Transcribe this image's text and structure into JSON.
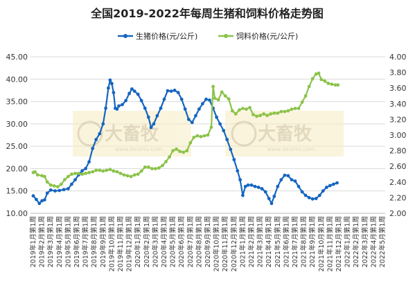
{
  "chart_data": {
    "type": "line",
    "title": "全国2019-2022年每周生猪和饲料价格走势图",
    "watermark_text": "www.dxumu.com",
    "categories": [
      "2019年1月第1周",
      "2019年2月第1周",
      "2019年3月第1周",
      "2019年4月第1周",
      "2019年5月第1周",
      "2019年6月第1周",
      "2019年7月第1周",
      "2019年8月第1周",
      "2019年9月第1周",
      "2019年10月第1周",
      "2019年11月第1周",
      "2019年12月第1周",
      "2020年1月第1周",
      "2020年2月第1周",
      "2020年3月第1周",
      "2020年4月第1周",
      "2020年5月第1周",
      "2020年6月第1周",
      "2020年7月第1周",
      "2020年8月第1周",
      "2020年9月第1周",
      "2020年10月第1周",
      "2020年11月第1周",
      "2020年12月第1周",
      "2021年1月第1周",
      "2021年2月第1周",
      "2021年3月第1周",
      "2021年4月第1周",
      "2021年5月第1周",
      "2021年6月第1周",
      "2021年7月第1周",
      "2021年8月第1周",
      "2021年9月第1周",
      "2021年10月第1周",
      "2021年11月第1周",
      "2021年12月第1周",
      "2022年1月第1周",
      "2022年2月第1周",
      "2022年3月第1周",
      "2022年4月第1周",
      "2022年5月第1周"
    ],
    "x_tick_labels": [
      "2019年1月第1周",
      "2019年2月第1周",
      "2019年3月第1周",
      "2019年4月第1周",
      "2019年5月第1周",
      "2019年6月第1周",
      "2019年7月第1周",
      "2019年8月第1周",
      "2019年9月第1周",
      "2019年10月第1周",
      "2019年11月第1周",
      "2019年12月第1周",
      "2020年1月第1周",
      "2020年2月第1周",
      "2020年3月第1周",
      "2020年4月第1周",
      "2020年5月第1周",
      "2020年6月第1周",
      "2020年7月第1周",
      "2020年8月第1周",
      "2020年9月第1周",
      "2020年10月第1周",
      "2020年11月第1周",
      "2020年12月第1周",
      "2021年1月第1周",
      "2021年2月第1周",
      "2021年3月第1周",
      "2021年4月第1周",
      "2021年5月第1周",
      "2021年6月第1周",
      "2021年7月第1周",
      "2021年8月第1周",
      "2021年9月第1周",
      "2021年10月第1周",
      "2021年11月第1周",
      "2021年12月第1周",
      "2022年1月第1周",
      "2022年2月第1周",
      "2022年3月第1周",
      "2022年4月第1周",
      "2022年5月第1周"
    ],
    "y_left": {
      "min": 10,
      "max": 45,
      "ticks": [
        "10.00",
        "15.00",
        "20.00",
        "25.00",
        "30.00",
        "35.00",
        "40.00",
        "45.00"
      ]
    },
    "y_right": {
      "min": 2.0,
      "max": 4.0,
      "ticks": [
        "2.00",
        "2.20",
        "2.40",
        "2.60",
        "2.80",
        "3.00",
        "3.20",
        "3.40",
        "3.60",
        "3.80",
        "4.00"
      ]
    },
    "grid": true,
    "legend_position": "top",
    "series": [
      {
        "name": "生猪价格(元/公斤)",
        "axis": "left",
        "color": "#1565c0",
        "points": [
          [
            0,
            13.9
          ],
          [
            0.35,
            13.1
          ],
          [
            0.7,
            12.2
          ],
          [
            1,
            12.8
          ],
          [
            1.3,
            13.0
          ],
          [
            1.6,
            14.5
          ],
          [
            2,
            15.2
          ],
          [
            2.5,
            15.0
          ],
          [
            3,
            15.1
          ],
          [
            3.5,
            15.3
          ],
          [
            4,
            15.5
          ],
          [
            4.4,
            16.5
          ],
          [
            4.8,
            17.5
          ],
          [
            5.2,
            18.6
          ],
          [
            5.6,
            19.5
          ],
          [
            6,
            20.0
          ],
          [
            6.4,
            21.5
          ],
          [
            6.8,
            24.5
          ],
          [
            7.2,
            26.5
          ],
          [
            7.6,
            27.8
          ],
          [
            8,
            30.0
          ],
          [
            8.3,
            33.5
          ],
          [
            8.6,
            38.0
          ],
          [
            8.8,
            39.8
          ],
          [
            9.0,
            39.0
          ],
          [
            9.2,
            37.0
          ],
          [
            9.4,
            33.5
          ],
          [
            9.6,
            33.3
          ],
          [
            9.8,
            34.0
          ],
          [
            10.2,
            34.3
          ],
          [
            10.6,
            35.2
          ],
          [
            11,
            36.8
          ],
          [
            11.3,
            37.8
          ],
          [
            11.6,
            37.3
          ],
          [
            12,
            36.6
          ],
          [
            12.4,
            35.2
          ],
          [
            12.8,
            33.5
          ],
          [
            13.2,
            31.5
          ],
          [
            13.5,
            29.2
          ],
          [
            13.8,
            30.0
          ],
          [
            14.2,
            31.8
          ],
          [
            14.6,
            33.5
          ],
          [
            15,
            35.5
          ],
          [
            15.4,
            37.4
          ],
          [
            15.8,
            37.3
          ],
          [
            16.2,
            37.5
          ],
          [
            16.6,
            37.0
          ],
          [
            17,
            35.5
          ],
          [
            17.4,
            33.3
          ],
          [
            17.8,
            31.0
          ],
          [
            18.2,
            30.3
          ],
          [
            18.6,
            31.8
          ],
          [
            19,
            33.3
          ],
          [
            19.4,
            34.5
          ],
          [
            19.8,
            35.5
          ],
          [
            20.2,
            35.3
          ],
          [
            20.6,
            33.5
          ],
          [
            21,
            31.5
          ],
          [
            21.4,
            30.0
          ],
          [
            21.8,
            28.5
          ],
          [
            22.2,
            26.5
          ],
          [
            22.6,
            24.3
          ],
          [
            23,
            22.0
          ],
          [
            23.4,
            19.5
          ],
          [
            23.7,
            17.5
          ],
          [
            24,
            14.0
          ],
          [
            24.3,
            16.0
          ],
          [
            24.6,
            16.3
          ],
          [
            25,
            16.3
          ],
          [
            25.4,
            16.0
          ],
          [
            25.8,
            15.8
          ],
          [
            26.2,
            15.5
          ],
          [
            26.6,
            14.8
          ],
          [
            27,
            13.3
          ],
          [
            27.3,
            12.2
          ],
          [
            27.6,
            13.8
          ],
          [
            28,
            16.0
          ],
          [
            28.4,
            17.5
          ],
          [
            28.8,
            18.5
          ],
          [
            29.2,
            18.4
          ],
          [
            29.6,
            17.5
          ],
          [
            30,
            17.2
          ],
          [
            30.4,
            16.0
          ],
          [
            30.8,
            14.8
          ],
          [
            31.2,
            14.0
          ],
          [
            31.6,
            13.5
          ],
          [
            32,
            13.2
          ],
          [
            32.4,
            13.3
          ],
          [
            32.8,
            14.0
          ],
          [
            33.2,
            15.0
          ],
          [
            33.6,
            15.8
          ],
          [
            34,
            16.2
          ],
          [
            34.4,
            16.5
          ],
          [
            34.8,
            16.8
          ]
        ]
      },
      {
        "name": "饲料价格(元/公斤)",
        "axis": "right",
        "color": "#8bc34a",
        "points": [
          [
            0,
            2.52
          ],
          [
            0.2,
            2.53
          ],
          [
            0.5,
            2.49
          ],
          [
            1,
            2.48
          ],
          [
            1.3,
            2.47
          ],
          [
            1.6,
            2.4
          ],
          [
            2,
            2.36
          ],
          [
            2.4,
            2.35
          ],
          [
            2.8,
            2.34
          ],
          [
            3.2,
            2.37
          ],
          [
            3.6,
            2.43
          ],
          [
            4,
            2.47
          ],
          [
            4.4,
            2.5
          ],
          [
            4.8,
            2.51
          ],
          [
            5.2,
            2.51
          ],
          [
            5.6,
            2.5
          ],
          [
            6,
            2.51
          ],
          [
            6.4,
            2.52
          ],
          [
            6.8,
            2.53
          ],
          [
            7.2,
            2.55
          ],
          [
            7.6,
            2.55
          ],
          [
            8,
            2.54
          ],
          [
            8.4,
            2.55
          ],
          [
            8.8,
            2.56
          ],
          [
            9.2,
            2.54
          ],
          [
            9.6,
            2.53
          ],
          [
            10,
            2.51
          ],
          [
            10.4,
            2.49
          ],
          [
            10.8,
            2.48
          ],
          [
            11.2,
            2.47
          ],
          [
            11.6,
            2.49
          ],
          [
            12,
            2.5
          ],
          [
            12.4,
            2.54
          ],
          [
            12.8,
            2.59
          ],
          [
            13.2,
            2.59
          ],
          [
            13.6,
            2.57
          ],
          [
            14,
            2.57
          ],
          [
            14.4,
            2.58
          ],
          [
            14.8,
            2.61
          ],
          [
            15.2,
            2.66
          ],
          [
            15.6,
            2.72
          ],
          [
            16,
            2.8
          ],
          [
            16.4,
            2.82
          ],
          [
            16.8,
            2.79
          ],
          [
            17.2,
            2.78
          ],
          [
            17.6,
            2.8
          ],
          [
            18,
            2.9
          ],
          [
            18.4,
            2.97
          ],
          [
            18.8,
            2.99
          ],
          [
            19.2,
            2.98
          ],
          [
            19.6,
            2.99
          ],
          [
            20,
            3.0
          ],
          [
            20.4,
            3.1
          ],
          [
            20.6,
            3.62
          ],
          [
            20.8,
            3.47
          ],
          [
            21.2,
            3.45
          ],
          [
            21.6,
            3.55
          ],
          [
            22,
            3.5
          ],
          [
            22.4,
            3.46
          ],
          [
            22.8,
            3.31
          ],
          [
            23.2,
            3.27
          ],
          [
            23.6,
            3.32
          ],
          [
            24,
            3.34
          ],
          [
            24.4,
            3.33
          ],
          [
            24.8,
            3.35
          ],
          [
            25.2,
            3.26
          ],
          [
            25.6,
            3.24
          ],
          [
            26,
            3.25
          ],
          [
            26.4,
            3.27
          ],
          [
            26.8,
            3.25
          ],
          [
            27.2,
            3.27
          ],
          [
            27.6,
            3.28
          ],
          [
            28,
            3.28
          ],
          [
            28.4,
            3.3
          ],
          [
            28.8,
            3.3
          ],
          [
            29.2,
            3.31
          ],
          [
            29.6,
            3.33
          ],
          [
            30,
            3.34
          ],
          [
            30.4,
            3.34
          ],
          [
            30.8,
            3.42
          ],
          [
            31.2,
            3.5
          ],
          [
            31.6,
            3.62
          ],
          [
            32,
            3.72
          ],
          [
            32.4,
            3.78
          ],
          [
            32.7,
            3.79
          ],
          [
            33,
            3.71
          ],
          [
            33.4,
            3.69
          ],
          [
            33.8,
            3.66
          ],
          [
            34.2,
            3.65
          ],
          [
            34.6,
            3.64
          ],
          [
            34.9,
            3.64
          ]
        ]
      }
    ]
  }
}
